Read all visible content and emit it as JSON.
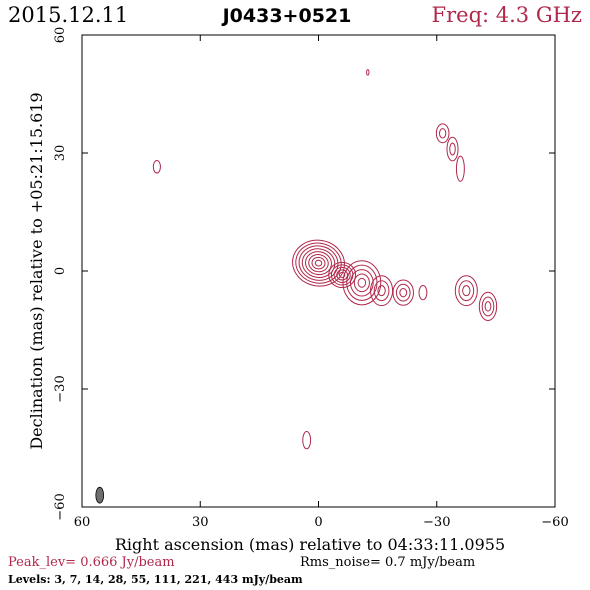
{
  "header": {
    "date": "2015.12.11",
    "source": "J0433+0521",
    "freq": "Freq: 4.3 GHz"
  },
  "footer": {
    "peak": "Peak_lev=  0.666 Jy/beam",
    "rms": "Rms_noise=   0.7 mJy/beam",
    "levels": "Levels:   3,    7,   14,   28,   55,  111,  221,  443  mJy/beam"
  },
  "colors": {
    "contour": "#b0284a",
    "peak_text": "#b0284a",
    "freq_text": "#b0284a",
    "beam_fill": "#6e6e6e",
    "frame": "#000000"
  },
  "chart_data": {
    "type": "contour",
    "title": "J0433+0521",
    "xlabel": "Right ascension (mas) relative to 04:33:11.0955",
    "ylabel": "Declination (mas) relative to +05:21:15.619",
    "xlim": [
      60,
      -60
    ],
    "ylim": [
      -60,
      60
    ],
    "xticks": [
      60,
      30,
      0,
      -30,
      -60
    ],
    "yticks": [
      60,
      30,
      0,
      -30,
      -60
    ],
    "xtick_labels": [
      "60",
      "30",
      "0",
      "−30",
      "−60"
    ],
    "ytick_labels": [
      "60",
      "30",
      "0",
      "−30",
      "−60"
    ],
    "contour_levels_mJy": [
      3,
      7,
      14,
      28,
      55,
      111,
      221,
      443
    ],
    "peak_Jy_per_beam": 0.666,
    "rms_mJy_per_beam": 0.7,
    "beam": {
      "x": 55.5,
      "y": -57,
      "major_mas": 4,
      "minor_mas": 2
    },
    "components": [
      {
        "x": 0,
        "y": 2,
        "rx": 6.6,
        "ry": 5.8,
        "angle": 10,
        "levels": 8
      },
      {
        "x": -6,
        "y": -1,
        "rx": 3.4,
        "ry": 3.2,
        "angle": 0,
        "levels": 5
      },
      {
        "x": -11,
        "y": -3,
        "rx": 4.8,
        "ry": 5.6,
        "angle": 0,
        "levels": 5
      },
      {
        "x": -16,
        "y": -5,
        "rx": 2.8,
        "ry": 3.8,
        "angle": 0,
        "levels": 3
      },
      {
        "x": -21.5,
        "y": -5.5,
        "rx": 2.6,
        "ry": 3.2,
        "angle": 0,
        "levels": 3
      },
      {
        "x": -26.5,
        "y": -5.5,
        "rx": 1.0,
        "ry": 1.8,
        "angle": 0,
        "levels": 1
      },
      {
        "x": -37.5,
        "y": -5,
        "rx": 2.8,
        "ry": 3.8,
        "angle": 0,
        "levels": 3
      },
      {
        "x": -43,
        "y": -9,
        "rx": 2.2,
        "ry": 3.6,
        "angle": 0,
        "levels": 3
      },
      {
        "x": -31.5,
        "y": 35,
        "rx": 1.6,
        "ry": 2.4,
        "angle": 0,
        "levels": 2
      },
      {
        "x": -34,
        "y": 31,
        "rx": 1.4,
        "ry": 3.0,
        "angle": 0,
        "levels": 2
      },
      {
        "x": -36,
        "y": 26,
        "rx": 1.0,
        "ry": 3.2,
        "angle": 0,
        "levels": 1
      },
      {
        "x": 41,
        "y": 26.5,
        "rx": 0.9,
        "ry": 1.6,
        "angle": 0,
        "levels": 1
      },
      {
        "x": 3,
        "y": -43,
        "rx": 1.0,
        "ry": 2.2,
        "angle": 0,
        "levels": 1
      },
      {
        "x": -12.5,
        "y": 50.5,
        "rx": 0.3,
        "ry": 0.7,
        "angle": 0,
        "levels": 1
      }
    ]
  }
}
